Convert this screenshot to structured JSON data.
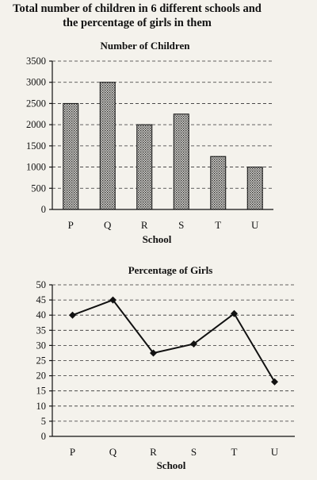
{
  "page": {
    "title_line1": "Total number of children in 6 different schools and",
    "title_line2": "the percentage of girls in them"
  },
  "chart_data": [
    {
      "type": "bar",
      "title": "Number of Children",
      "xlabel": "School",
      "ylabel": "",
      "categories": [
        "P",
        "Q",
        "R",
        "S",
        "T",
        "U"
      ],
      "values": [
        2500,
        3000,
        2000,
        2250,
        1250,
        1000
      ],
      "ylim": [
        0,
        3500
      ],
      "yticks": [
        0,
        500,
        1000,
        1500,
        2000,
        2500,
        3000,
        3500
      ],
      "grid": true,
      "legend": "none",
      "bar_fill": "hatched"
    },
    {
      "type": "line",
      "title": "Percentage of Girls",
      "xlabel": "School",
      "ylabel": "",
      "categories": [
        "P",
        "Q",
        "R",
        "S",
        "T",
        "U"
      ],
      "values": [
        40,
        45,
        27.5,
        30.5,
        40.5,
        18
      ],
      "ylim": [
        0,
        50
      ],
      "yticks": [
        0,
        5,
        10,
        15,
        20,
        25,
        30,
        35,
        40,
        45,
        50
      ],
      "grid": true,
      "legend": "none",
      "marker": "diamond"
    }
  ]
}
